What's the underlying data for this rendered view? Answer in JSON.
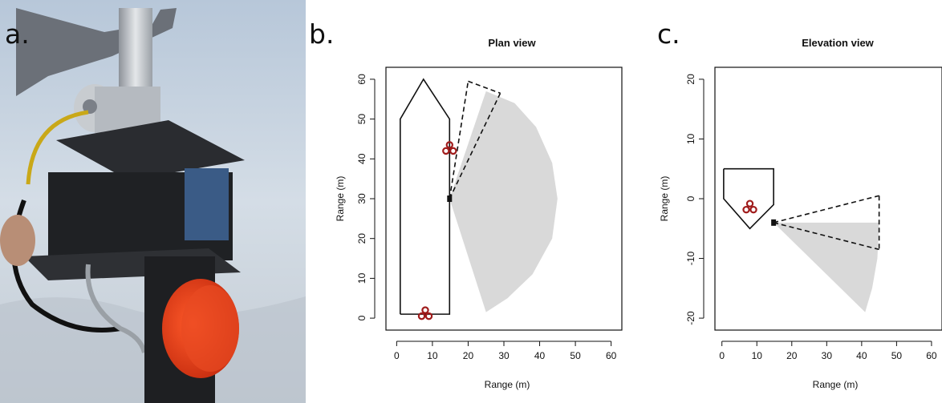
{
  "panel_labels": {
    "a": "a.",
    "b": "b.",
    "c": "c."
  },
  "colors": {
    "sonar_symbol": "#a01c1c",
    "sector_fill": "#d9d9d9",
    "device_orange": "#e8401c"
  },
  "chart_data": [
    {
      "type": "scatter",
      "title": "Plan view",
      "xlabel": "Range (m)",
      "ylabel": "Range (m)",
      "xlim": [
        -3,
        63
      ],
      "ylim": [
        -3,
        63
      ],
      "xticks": [
        0,
        10,
        20,
        30,
        40,
        50,
        60
      ],
      "yticks": [
        0,
        10,
        20,
        30,
        40,
        50,
        60
      ],
      "grid": false,
      "outline": [
        [
          1,
          1
        ],
        [
          1,
          50
        ],
        [
          7.5,
          60
        ],
        [
          14.8,
          50
        ],
        [
          14.8,
          1
        ],
        [
          1,
          1
        ]
      ],
      "sensor_position": [
        14.8,
        30
      ],
      "sensor_symbols": [
        [
          8,
          1
        ],
        [
          14.8,
          42.5
        ]
      ],
      "beam_lines": [
        {
          "from": [
            14.8,
            30
          ],
          "to": [
            20,
            59.5
          ]
        },
        {
          "from": [
            14.8,
            30
          ],
          "to": [
            29,
            56.5
          ]
        },
        {
          "from": [
            20,
            59.5
          ],
          "to": [
            29,
            56.5
          ]
        }
      ],
      "coverage_sector": {
        "apex": [
          14.8,
          30
        ],
        "outer_points": [
          [
            25,
            57
          ],
          [
            33,
            54
          ],
          [
            39,
            48
          ],
          [
            43.5,
            39
          ],
          [
            45,
            30
          ],
          [
            43.5,
            20
          ],
          [
            38,
            11
          ],
          [
            31,
            5
          ],
          [
            25,
            1.5
          ]
        ]
      }
    },
    {
      "type": "scatter",
      "title": "Elevation view",
      "xlabel": "Range (m)",
      "ylabel": "Range (m)",
      "xlim": [
        -2,
        63
      ],
      "ylim": [
        -22,
        22
      ],
      "xticks": [
        0,
        10,
        20,
        30,
        40,
        50,
        60
      ],
      "yticks": [
        -20,
        -10,
        0,
        10,
        20
      ],
      "grid": false,
      "outline": [
        [
          0.5,
          5
        ],
        [
          14.8,
          5
        ],
        [
          14.8,
          -1
        ],
        [
          8,
          -5
        ],
        [
          0.5,
          0
        ],
        [
          0.5,
          5
        ]
      ],
      "sensor_position": [
        14.8,
        -4
      ],
      "sensor_symbols": [
        [
          8,
          -1.5
        ]
      ],
      "beam_lines": [
        {
          "from": [
            14.8,
            -4
          ],
          "to": [
            45,
            0.5
          ]
        },
        {
          "from": [
            14.8,
            -4
          ],
          "to": [
            45,
            -8.5
          ]
        },
        {
          "from": [
            45,
            0.5
          ],
          "to": [
            45,
            -8.5
          ]
        }
      ],
      "coverage_sector": {
        "apex": [
          14.8,
          -4
        ],
        "outer_points": [
          [
            45,
            -4
          ],
          [
            44.5,
            -10
          ],
          [
            43,
            -15
          ],
          [
            41,
            -19
          ]
        ]
      }
    }
  ]
}
